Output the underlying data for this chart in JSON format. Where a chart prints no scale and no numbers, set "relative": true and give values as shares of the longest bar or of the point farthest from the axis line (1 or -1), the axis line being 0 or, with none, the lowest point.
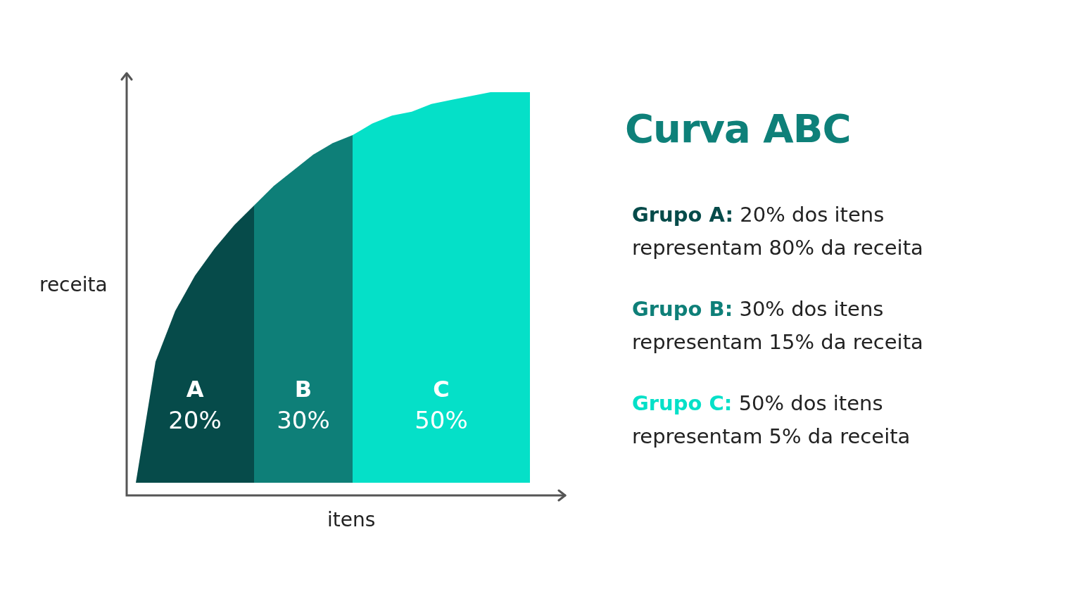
{
  "chart_data": {
    "type": "area",
    "title": "Curva ABC",
    "xlabel": "itens",
    "ylabel": "receita",
    "relative": true,
    "legend": false,
    "categories": [
      null,
      null,
      null,
      null,
      null,
      null,
      null,
      null,
      null,
      null,
      null,
      null,
      null,
      null,
      null,
      null,
      null,
      null,
      null,
      null,
      null
    ],
    "series": [
      {
        "name": "A",
        "color": "#064b4a",
        "values": [
          0,
          0.31,
          0.44,
          0.53,
          0.6,
          0.66,
          0.71,
          null,
          null,
          null,
          null,
          null,
          null,
          null,
          null,
          null,
          null,
          null,
          null,
          null,
          null
        ]
      },
      {
        "name": "B",
        "color": "#0e7f78",
        "values": [
          null,
          null,
          null,
          null,
          null,
          null,
          0.71,
          0.76,
          0.8,
          0.84,
          0.87,
          0.89,
          null,
          null,
          null,
          null,
          null,
          null,
          null,
          null,
          null
        ]
      },
      {
        "name": "C",
        "color": "#05e0c8",
        "values": [
          null,
          null,
          null,
          null,
          null,
          null,
          null,
          null,
          null,
          null,
          null,
          0.89,
          0.92,
          0.94,
          0.95,
          0.97,
          0.98,
          0.99,
          1,
          1,
          1
        ]
      }
    ],
    "annotations": [
      "20%",
      "30%",
      "50%",
      "Grupo A: 20% dos itens representam 80% da receita",
      "Grupo B: 30% dos itens representam 15% da receita",
      "Grupo C: 50% dos itens representam 5% da receita"
    ]
  }
}
